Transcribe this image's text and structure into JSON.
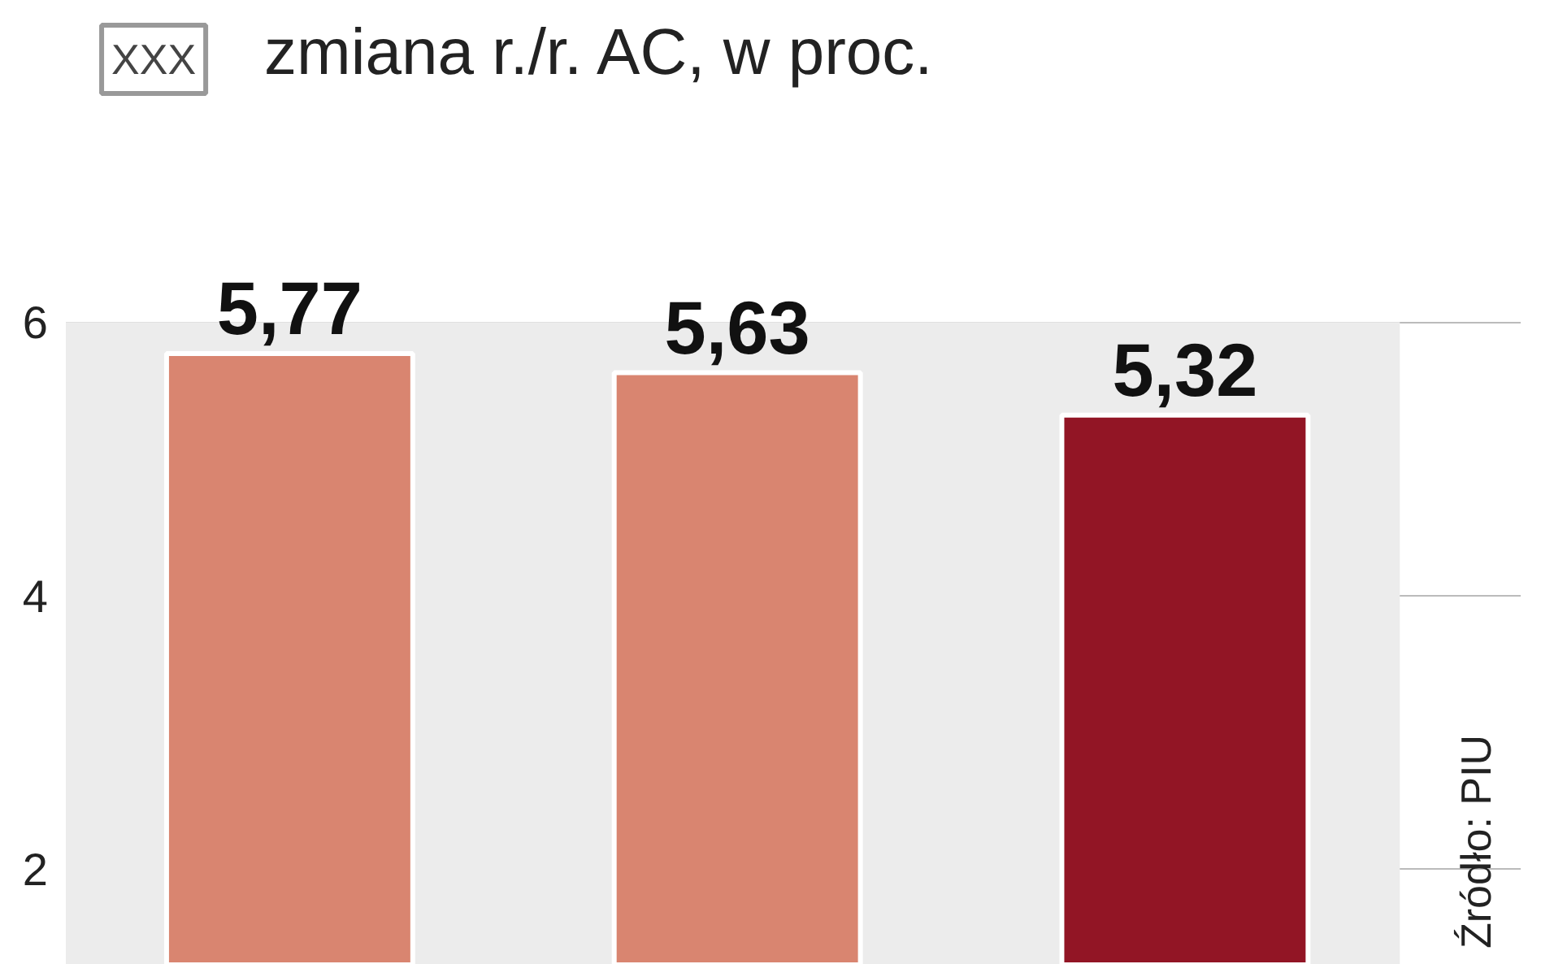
{
  "chart_data": {
    "type": "bar",
    "title": "zmiana r./r. AC, w proc.",
    "annotations": [
      "XXX",
      "Źródło: PIU"
    ],
    "categories": [
      null,
      null,
      null
    ],
    "values": [
      5.77,
      5.63,
      5.32
    ],
    "colors": [
      "#d98570",
      "#d98570",
      "#921525"
    ],
    "data_labels": true,
    "value_labels": [
      "5,77",
      "5,63",
      "5,32"
    ],
    "ylim": [
      1.3,
      6
    ],
    "yticks": [
      2,
      4,
      6
    ],
    "grid": "y"
  }
}
